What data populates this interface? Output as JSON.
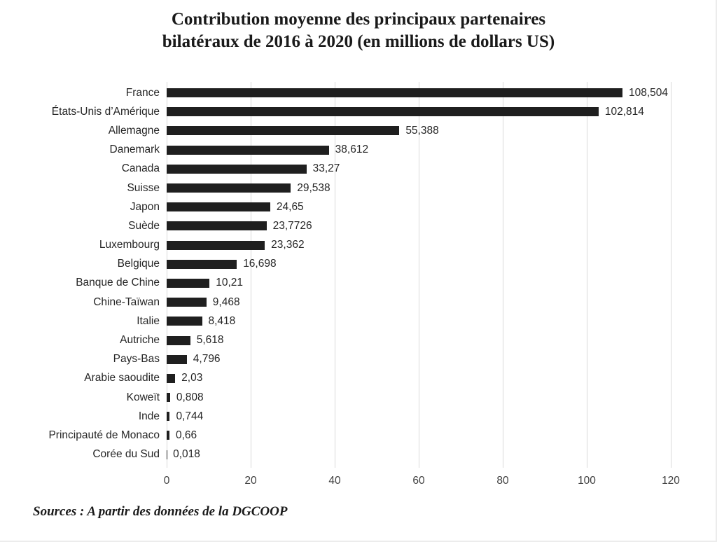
{
  "chart_data": {
    "type": "bar",
    "orientation": "horizontal",
    "title": "Contribution moyenne des principaux partenaires bilatéraux de 2016 à 2020 (en millions de dollars US)",
    "title_lines": [
      "Contribution moyenne des principaux partenaires",
      "bilatéraux de 2016 à 2020 (en millions de dollars US)"
    ],
    "categories": [
      "France",
      "États-Unis d’Amérique",
      "Allemagne",
      "Danemark",
      "Canada",
      "Suisse",
      "Japon",
      "Suède",
      "Luxembourg",
      "Belgique",
      "Banque de Chine",
      "Chine-Taïwan",
      "Italie",
      "Autriche",
      "Pays-Bas",
      "Arabie saoudite",
      "Koweït",
      "Inde",
      "Principauté de Monaco",
      "Corée du Sud"
    ],
    "values": [
      108.504,
      102.814,
      55.388,
      38.612,
      33.27,
      29.538,
      24.65,
      23.7726,
      23.362,
      16.698,
      10.21,
      9.468,
      8.418,
      5.618,
      4.796,
      2.03,
      0.808,
      0.744,
      0.66,
      0.018
    ],
    "value_labels": [
      "108,504",
      "102,814",
      "55,388",
      "38,612",
      "33,27",
      "29,538",
      "24,65",
      "23,7726",
      "23,362",
      "16,698",
      "10,21",
      "9,468",
      "8,418",
      "5,618",
      "4,796",
      "2,03",
      "0,808",
      "0,744",
      "0,66",
      "0,018"
    ],
    "xlabel": "",
    "ylabel": "",
    "xlim": [
      0,
      120
    ],
    "xticks": [
      "0",
      "20",
      "40",
      "60",
      "80",
      "100",
      "120"
    ],
    "grid": "vertical-only",
    "legend": "none",
    "colors": {
      "bar": "#1f1f1f",
      "gridline": "#d9d9d9",
      "tick_text": "#404040",
      "label_text": "#262626"
    }
  },
  "source_note": "Sources : A partir des données de la DGCOOP"
}
